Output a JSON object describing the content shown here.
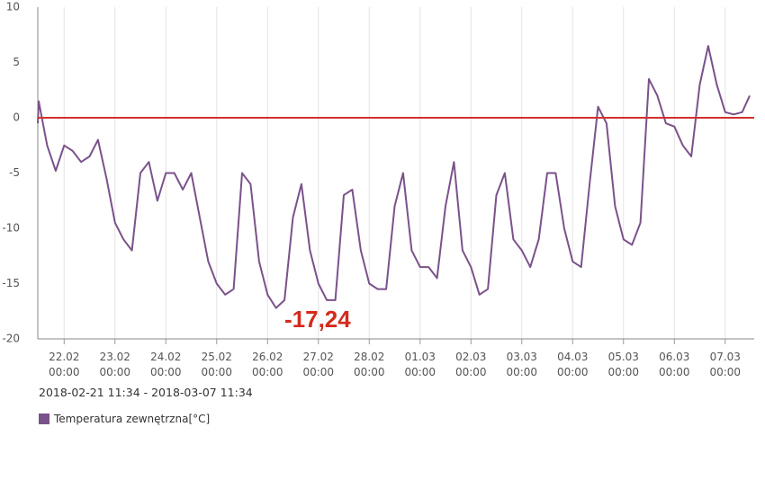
{
  "chart_data": {
    "type": "line",
    "subtitle": "2018-02-21 11:34 - 2018-03-07 11:34",
    "annotation": "-17,24",
    "xlim": [
      "2018-02-21 11:34",
      "2018-03-07 11:34"
    ],
    "ylim": [
      -20,
      10
    ],
    "yticks": [
      -20,
      -15,
      -10,
      -5,
      0,
      5,
      10
    ],
    "xticks": [
      {
        "value": "2018-02-22 00:00",
        "label": "22.02\n00:00"
      },
      {
        "value": "2018-02-23 00:00",
        "label": "23.02\n00:00"
      },
      {
        "value": "2018-02-24 00:00",
        "label": "24.02\n00:00"
      },
      {
        "value": "2018-02-25 00:00",
        "label": "25.02\n00:00"
      },
      {
        "value": "2018-02-26 00:00",
        "label": "26.02\n00:00"
      },
      {
        "value": "2018-02-27 00:00",
        "label": "27.02\n00:00"
      },
      {
        "value": "2018-02-28 00:00",
        "label": "28.02\n00:00"
      },
      {
        "value": "2018-03-01 00:00",
        "label": "01.03\n00:00"
      },
      {
        "value": "2018-03-02 00:00",
        "label": "02.03\n00:00"
      },
      {
        "value": "2018-03-03 00:00",
        "label": "03.03\n00:00"
      },
      {
        "value": "2018-03-04 00:00",
        "label": "04.03\n00:00"
      },
      {
        "value": "2018-03-05 00:00",
        "label": "05.03\n00:00"
      },
      {
        "value": "2018-03-06 00:00",
        "label": "06.03\n00:00"
      },
      {
        "value": "2018-03-07 00:00",
        "label": "07.03\n00:00"
      }
    ],
    "grid": true,
    "reference_line": {
      "value": 0,
      "color": "#d32f2f"
    },
    "x": [
      "2018-02-21 11:34",
      "2018-02-21 12:00",
      "2018-02-21 16:00",
      "2018-02-21 20:00",
      "2018-02-22 00:00",
      "2018-02-22 04:00",
      "2018-02-22 08:00",
      "2018-02-22 12:00",
      "2018-02-22 16:00",
      "2018-02-22 20:00",
      "2018-02-23 00:00",
      "2018-02-23 04:00",
      "2018-02-23 08:00",
      "2018-02-23 12:00",
      "2018-02-23 16:00",
      "2018-02-23 20:00",
      "2018-02-24 00:00",
      "2018-02-24 04:00",
      "2018-02-24 08:00",
      "2018-02-24 12:00",
      "2018-02-24 16:00",
      "2018-02-24 20:00",
      "2018-02-25 00:00",
      "2018-02-25 04:00",
      "2018-02-25 08:00",
      "2018-02-25 12:00",
      "2018-02-25 16:00",
      "2018-02-25 20:00",
      "2018-02-26 00:00",
      "2018-02-26 04:00",
      "2018-02-26 08:00",
      "2018-02-26 12:00",
      "2018-02-26 16:00",
      "2018-02-26 20:00",
      "2018-02-27 00:00",
      "2018-02-27 04:00",
      "2018-02-27 08:00",
      "2018-02-27 12:00",
      "2018-02-27 16:00",
      "2018-02-27 20:00",
      "2018-02-28 00:00",
      "2018-02-28 04:00",
      "2018-02-28 08:00",
      "2018-02-28 12:00",
      "2018-02-28 16:00",
      "2018-02-28 20:00",
      "2018-03-01 00:00",
      "2018-03-01 04:00",
      "2018-03-01 08:00",
      "2018-03-01 12:00",
      "2018-03-01 16:00",
      "2018-03-01 20:00",
      "2018-03-02 00:00",
      "2018-03-02 04:00",
      "2018-03-02 08:00",
      "2018-03-02 12:00",
      "2018-03-02 16:00",
      "2018-03-02 20:00",
      "2018-03-03 00:00",
      "2018-03-03 04:00",
      "2018-03-03 08:00",
      "2018-03-03 12:00",
      "2018-03-03 16:00",
      "2018-03-03 20:00",
      "2018-03-04 00:00",
      "2018-03-04 04:00",
      "2018-03-04 08:00",
      "2018-03-04 12:00",
      "2018-03-04 16:00",
      "2018-03-04 20:00",
      "2018-03-05 00:00",
      "2018-03-05 04:00",
      "2018-03-05 08:00",
      "2018-03-05 12:00",
      "2018-03-05 16:00",
      "2018-03-05 20:00",
      "2018-03-06 00:00",
      "2018-03-06 04:00",
      "2018-03-06 08:00",
      "2018-03-06 12:00",
      "2018-03-06 16:00",
      "2018-03-06 20:00",
      "2018-03-07 00:00",
      "2018-03-07 04:00",
      "2018-03-07 08:00",
      "2018-03-07 11:34"
    ],
    "series": [
      {
        "name": "Temperatura zewnętrzna[°C]",
        "color": "#7a528b",
        "values": [
          -0.5,
          1.5,
          -2.5,
          -4.8,
          -2.5,
          -3,
          -4,
          -3.5,
          -2,
          -5.5,
          -9.5,
          -11,
          -12,
          -5,
          -4,
          -7.5,
          -5,
          -5,
          -6.5,
          -5,
          -9,
          -13,
          -15,
          -16,
          -15.5,
          -5,
          -6,
          -13,
          -16,
          -17.2,
          -16.5,
          -9,
          -6,
          -12,
          -15,
          -16.5,
          -16.5,
          -7,
          -6.5,
          -12,
          -15,
          -15.5,
          -15.5,
          -8,
          -5,
          -12,
          -13.5,
          -13.5,
          -14.5,
          -8,
          -4,
          -12,
          -13.5,
          -16,
          -15.5,
          -7,
          -5,
          -11,
          -12,
          -13.5,
          -11,
          -5,
          -5,
          -10,
          -13,
          -13.5,
          -6,
          1,
          -0.5,
          -8,
          -11,
          -11.5,
          -9.5,
          3.5,
          2,
          -0.5,
          -0.8,
          -2.5,
          -3.5,
          3,
          6.5,
          3,
          0.5,
          0.3,
          0.5,
          2
        ]
      }
    ]
  }
}
